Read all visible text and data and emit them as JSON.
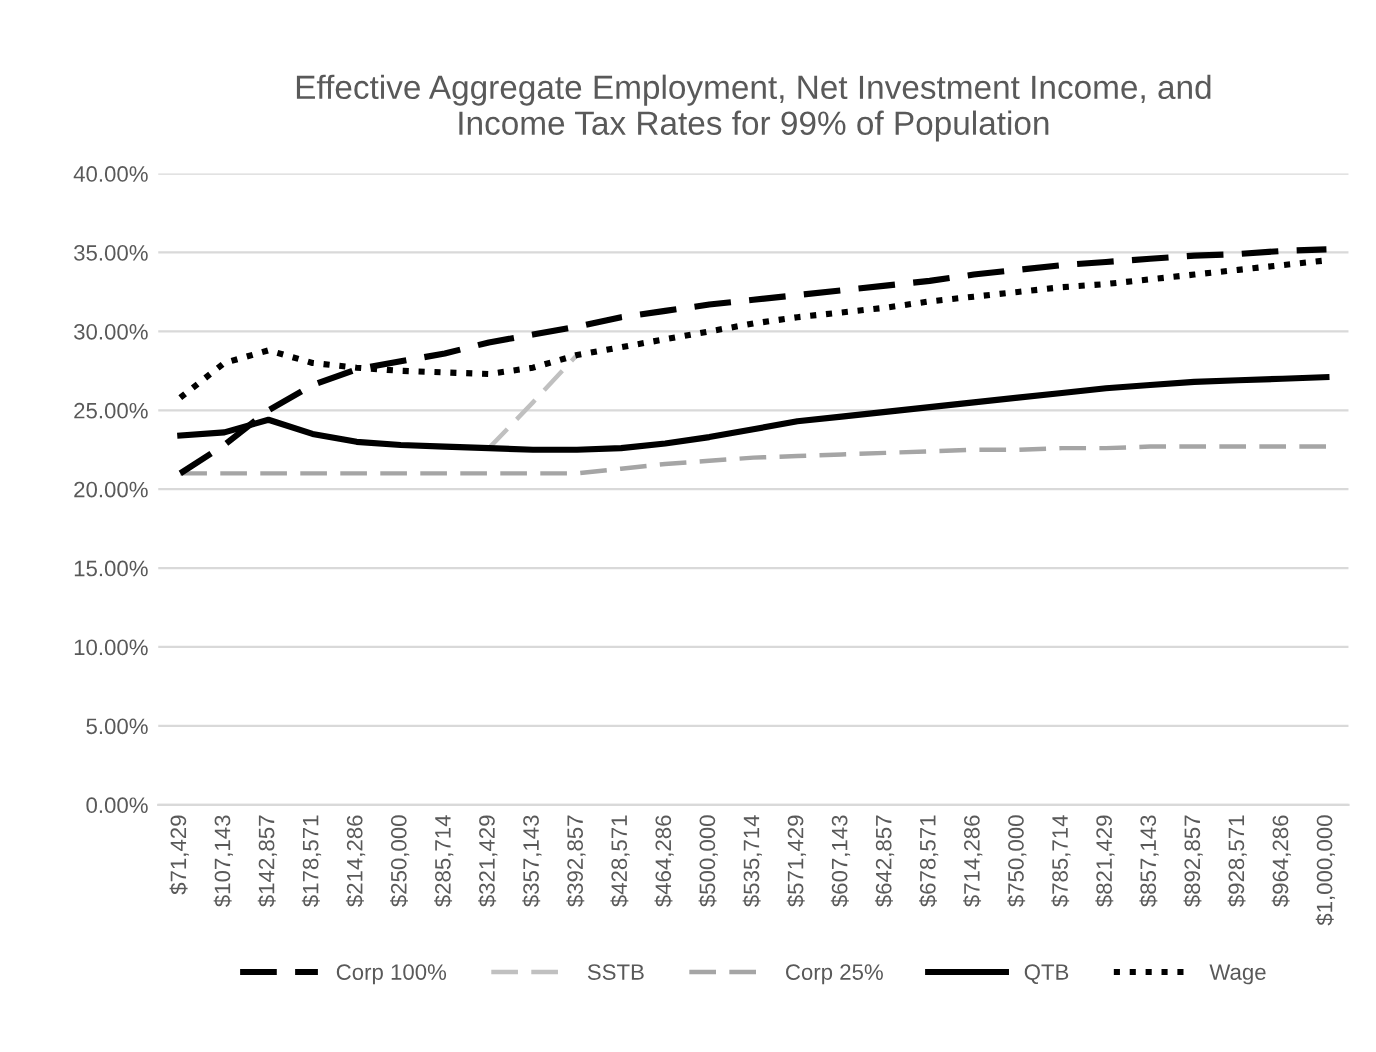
{
  "chart_data": {
    "type": "line",
    "title": "Effective Aggregate Employment, Net Investment Income, and\nIncome Tax Rates for 99% of Population",
    "categories": [
      "$71,429",
      "$107,143",
      "$142,857",
      "$178,571",
      "$214,286",
      "$250,000",
      "$285,714",
      "$321,429",
      "$357,143",
      "$392,857",
      "$428,571",
      "$464,286",
      "$500,000",
      "$535,714",
      "$571,429",
      "$607,143",
      "$642,857",
      "$678,571",
      "$714,286",
      "$750,000",
      "$785,714",
      "$821,429",
      "$857,143",
      "$892,857",
      "$928,571",
      "$964,286",
      "$1,000,000"
    ],
    "series": [
      {
        "name": "Corp 100%",
        "color": "#000000",
        "line_style": "dashed",
        "values": [
          21.0,
          22.8,
          25.0,
          26.6,
          27.6,
          28.1,
          28.6,
          29.3,
          29.8,
          30.3,
          30.9,
          31.3,
          31.7,
          32.0,
          32.3,
          32.6,
          32.9,
          33.2,
          33.6,
          33.9,
          34.2,
          34.4,
          34.6,
          34.8,
          34.9,
          35.1,
          35.2
        ]
      },
      {
        "name": "SSTB",
        "color": "#c0c0c0",
        "line_style": "dashed",
        "values": [
          null,
          null,
          null,
          null,
          null,
          null,
          null,
          22.6,
          25.5,
          28.5,
          null,
          null,
          null,
          null,
          null,
          null,
          null,
          null,
          null,
          null,
          null,
          null,
          null,
          null,
          null,
          null,
          null
        ]
      },
      {
        "name": "Corp 25%",
        "color": "#a5a5a5",
        "line_style": "dashed",
        "values": [
          21.0,
          21.0,
          21.0,
          21.0,
          21.0,
          21.0,
          21.0,
          21.0,
          21.0,
          21.0,
          21.3,
          21.6,
          21.8,
          22.0,
          22.1,
          22.2,
          22.3,
          22.4,
          22.5,
          22.5,
          22.6,
          22.6,
          22.7,
          22.7,
          22.7,
          22.7,
          22.7
        ]
      },
      {
        "name": "QTB",
        "color": "#000000",
        "line_style": "solid",
        "values": [
          23.4,
          23.6,
          24.4,
          23.5,
          23.0,
          22.8,
          22.7,
          22.6,
          22.5,
          22.5,
          22.6,
          22.9,
          23.3,
          23.8,
          24.3,
          24.6,
          24.9,
          25.2,
          25.5,
          25.8,
          26.1,
          26.4,
          26.6,
          26.8,
          26.9,
          27.0,
          27.1
        ]
      },
      {
        "name": "Wage",
        "color": "#000000",
        "line_style": "dotted",
        "values": [
          25.8,
          28.0,
          28.8,
          28.0,
          27.7,
          27.5,
          27.4,
          27.3,
          27.7,
          28.5,
          29.0,
          29.5,
          30.0,
          30.5,
          30.9,
          31.2,
          31.5,
          31.9,
          32.2,
          32.5,
          32.8,
          33.0,
          33.3,
          33.6,
          33.9,
          34.2,
          34.5
        ]
      }
    ],
    "ylim": [
      0,
      40
    ],
    "yticks": [
      {
        "value": 0,
        "label": "0.00%"
      },
      {
        "value": 5,
        "label": "5.00%"
      },
      {
        "value": 10,
        "label": "10.00%"
      },
      {
        "value": 15,
        "label": "15.00%"
      },
      {
        "value": 20,
        "label": "20.00%"
      },
      {
        "value": 25,
        "label": "25.00%"
      },
      {
        "value": 30,
        "label": "30.00%"
      },
      {
        "value": 35,
        "label": "35.00%"
      },
      {
        "value": 40,
        "label": "40.00%"
      }
    ],
    "grid": "y",
    "legend": "bottom",
    "marker": "none"
  }
}
